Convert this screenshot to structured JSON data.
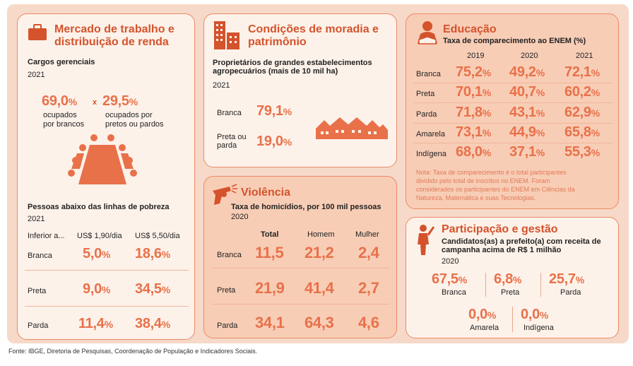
{
  "colors": {
    "accent": "#d4532c",
    "number": "#e8714a",
    "card_bg": "#fdf2ea",
    "card_alt": "#f8cdb6",
    "border": "#ec8a64"
  },
  "mercado": {
    "title_line1": "Mercado de trabalho e",
    "title_line2": "distribuição de renda",
    "icon": "briefcase-icon",
    "cargos_label": "Cargos gerenciais",
    "cargos_year": "2021",
    "brancos_value": "69,0",
    "brancos_label_1": "ocupados",
    "brancos_label_2": "por brancos",
    "times": "x",
    "pretos_value": "29,5",
    "pretos_label_1": "ocupados por",
    "pretos_label_2": "pretos ou pardos",
    "pobreza_label": "Pessoas abaixo das linhas de pobreza",
    "pobreza_year": "2021",
    "col_0": "Inferior a...",
    "col_1": "US$ 1,90/dia",
    "col_2": "US$ 5,50/dia",
    "rows": [
      {
        "label": "Branca",
        "v1": "5,0",
        "v2": "18,6"
      },
      {
        "label": "Preta",
        "v1": "9,0",
        "v2": "34,5"
      },
      {
        "label": "Parda",
        "v1": "11,4",
        "v2": "38,4"
      }
    ]
  },
  "moradia": {
    "title_line1": "Condições de moradia e",
    "title_line2": "patrimônio",
    "icon": "buildings-icon",
    "desc_line1": "Proprietários de grandes estabelecimentos",
    "desc_line2": "agropecuários (mais de 10 mil ha)",
    "year": "2021",
    "branca_label": "Branca",
    "branca_value": "79,1",
    "preta_label_1": "Preta ou",
    "preta_label_2": "parda",
    "preta_value": "19,0"
  },
  "violencia": {
    "title": "Violência",
    "icon": "revolver-icon",
    "desc": "Taxa de homicídios, por 100 mil pessoas",
    "year": "2020",
    "col_total": "Total",
    "col_homem": "Homem",
    "col_mulher": "Mulher",
    "rows": [
      {
        "label": "Branca",
        "total": "11,5",
        "homem": "21,2",
        "mulher": "2,4"
      },
      {
        "label": "Preta",
        "total": "21,9",
        "homem": "41,4",
        "mulher": "2,7"
      },
      {
        "label": "Parda",
        "total": "34,1",
        "homem": "64,3",
        "mulher": "4,6"
      }
    ]
  },
  "educacao": {
    "title": "Educação",
    "icon": "student-reading-icon",
    "desc": "Taxa de comparecimento ao ENEM (%)",
    "years": [
      "2019",
      "2020",
      "2021"
    ],
    "rows": [
      {
        "label": "Branca",
        "v2019": "75,2",
        "v2020": "49,2",
        "v2021": "72,1"
      },
      {
        "label": "Preta",
        "v2019": "70,1",
        "v2020": "40,7",
        "v2021": "60,2"
      },
      {
        "label": "Parda",
        "v2019": "71,8",
        "v2020": "43,1",
        "v2021": "62,9"
      },
      {
        "label": "Amarela",
        "v2019": "73,1",
        "v2020": "44,9",
        "v2021": "65,8"
      },
      {
        "label": "Indígena",
        "v2019": "68,0",
        "v2020": "37,1",
        "v2021": "55,3"
      }
    ],
    "note_line1": "Nota: Taxa de comparecimento é o total participantes",
    "note_line2": "dividido pelo total de inscritos no ENEM. Foram",
    "note_line3": "considerados os participantes do ENEM em Ciências da",
    "note_line4": "Natureza, Matemática e suas Tecnologias."
  },
  "participacao": {
    "title": "Participação e gestão",
    "icon": "speaker-person-icon",
    "desc_line1": "Candidatos(as) a prefeito(a) com receita de",
    "desc_line2": "campanha acima de R$ 1 milhão",
    "year": "2020",
    "items": [
      {
        "value": "67,5",
        "label": "Branca"
      },
      {
        "value": "6,8",
        "label": "Preta"
      },
      {
        "value": "25,7",
        "label": "Parda"
      },
      {
        "value": "0,0",
        "label": "Amarela"
      },
      {
        "value": "0,0",
        "label": "Indígena"
      }
    ]
  },
  "pct_symbol": "%",
  "source": "Fonte: IBGE, Diretoria de Pesquisas, Coordenação de População e Indicadores Sociais."
}
